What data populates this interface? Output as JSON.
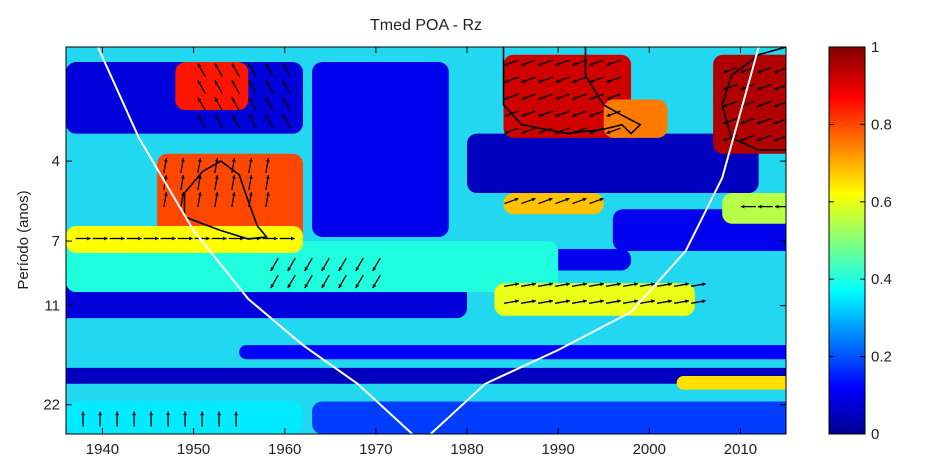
{
  "chart_data": {
    "type": "heatmap",
    "title": "Tmed POA - Rz",
    "xlabel": "",
    "ylabel": "Período (anos)",
    "x_ticks": [
      1940,
      1950,
      1960,
      1970,
      1980,
      1990,
      2000,
      2010
    ],
    "xlim": [
      1936,
      2015
    ],
    "y_ticks": [
      {
        "value": 4,
        "label": "4"
      },
      {
        "value": 7,
        "label": "7"
      },
      {
        "value": 11,
        "label": "11"
      },
      {
        "value": 22,
        "label": "22"
      }
    ],
    "ylim": [
      1.8,
      27
    ],
    "y_scale": "log",
    "colorbar": {
      "ticks": [
        0,
        0.2,
        0.4,
        0.6,
        0.8,
        1
      ],
      "tick_labels": [
        "0",
        "0.2",
        "0.4",
        "0.6",
        "0.8",
        "1"
      ],
      "range": [
        0,
        1
      ],
      "colormap": [
        "#00008f",
        "#0000ff",
        "#00ffff",
        "#ffff00",
        "#ff0000",
        "#800000"
      ]
    },
    "coherence_regions": [
      {
        "x": [
          1934,
          1980
        ],
        "y": [
          9,
          12
        ],
        "value": 0.08
      },
      {
        "x": [
          1934,
          2016
        ],
        "y": [
          17,
          19
        ],
        "value": 0.05
      },
      {
        "x": [
          1955,
          2016
        ],
        "y": [
          14.5,
          16
        ],
        "value": 0.12
      },
      {
        "x": [
          1936,
          1962
        ],
        "y": [
          2.0,
          3.3
        ],
        "value": 0.08
      },
      {
        "x": [
          1963,
          1978
        ],
        "y": [
          2.0,
          6.8
        ],
        "value": 0.1
      },
      {
        "x": [
          1980,
          2012
        ],
        "y": [
          3.3,
          5.0
        ],
        "value": 0.05
      },
      {
        "x": [
          1996,
          2016
        ],
        "y": [
          5.6,
          7.5
        ],
        "value": 0.1
      },
      {
        "x": [
          1985,
          1998
        ],
        "y": [
          7.4,
          8.6
        ],
        "value": 0.1
      },
      {
        "x": [
          1936,
          1990
        ],
        "y": [
          7.0,
          10.0
        ],
        "value": 0.4
      },
      {
        "x": [
          1946,
          1962
        ],
        "y": [
          3.8,
          7.2
        ],
        "value": 0.8
      },
      {
        "x": [
          1948,
          1956
        ],
        "y": [
          2.0,
          2.8
        ],
        "value": 0.85
      },
      {
        "x": [
          1936,
          1962
        ],
        "y": [
          6.3,
          7.6
        ],
        "value": 0.62
      },
      {
        "x": [
          1984,
          1998
        ],
        "y": [
          1.9,
          3.4
        ],
        "value": 0.92
      },
      {
        "x": [
          1995,
          2002
        ],
        "y": [
          2.6,
          3.4
        ],
        "value": 0.75
      },
      {
        "x": [
          1983,
          2005
        ],
        "y": [
          9.4,
          11.8
        ],
        "value": 0.6
      },
      {
        "x": [
          1984,
          1995
        ],
        "y": [
          5.0,
          5.8
        ],
        "value": 0.68
      },
      {
        "x": [
          2007,
          2016
        ],
        "y": [
          1.9,
          3.8
        ],
        "value": 0.95
      },
      {
        "x": [
          2003,
          2016
        ],
        "y": [
          18.0,
          19.8
        ],
        "value": 0.65
      },
      {
        "x": [
          2008,
          2016
        ],
        "y": [
          5.0,
          6.2
        ],
        "value": 0.55
      },
      {
        "x": [
          1936,
          1962
        ],
        "y": [
          21.5,
          27
        ],
        "value": 0.35
      },
      {
        "x": [
          1963,
          2016
        ],
        "y": [
          21.5,
          27
        ],
        "value": 0.18
      }
    ],
    "significance_contours": [
      {
        "points": [
          [
            1949,
            5.9
          ],
          [
            1949,
            5.0
          ],
          [
            1951,
            4.3
          ],
          [
            1953,
            4.0
          ],
          [
            1955,
            4.4
          ],
          [
            1956,
            5.3
          ],
          [
            1957,
            6.3
          ],
          [
            1958,
            6.8
          ],
          [
            1956,
            6.9
          ],
          [
            1953,
            6.5
          ],
          [
            1951,
            6.2
          ],
          [
            1949,
            5.9
          ]
        ]
      },
      {
        "points": [
          [
            1984,
            1.8
          ],
          [
            1984,
            2.7
          ],
          [
            1986,
            3.1
          ],
          [
            1991,
            3.3
          ],
          [
            1995,
            3.2
          ],
          [
            1997,
            3.1
          ],
          [
            1998,
            3.3
          ],
          [
            1999,
            3.1
          ],
          [
            1997,
            2.9
          ],
          [
            1995,
            2.7
          ],
          [
            1993,
            2.2
          ],
          [
            1993,
            1.8
          ]
        ]
      },
      {
        "points": [
          [
            2015,
            1.8
          ],
          [
            2012,
            1.9
          ],
          [
            2009,
            2.2
          ],
          [
            2008,
            2.7
          ],
          [
            2009,
            3.4
          ],
          [
            2012,
            3.7
          ],
          [
            2015,
            3.7
          ]
        ]
      }
    ],
    "cone_of_influence": {
      "left": [
        [
          1939.5,
          1.8
        ],
        [
          1944,
          3.4
        ],
        [
          1950,
          6.5
        ],
        [
          1956,
          10.5
        ],
        [
          1962,
          14.5
        ],
        [
          1968,
          19
        ],
        [
          1974,
          27
        ]
      ],
      "right": [
        [
          1976,
          27
        ],
        [
          1982,
          19
        ],
        [
          1990,
          15
        ],
        [
          1998,
          11.5
        ],
        [
          2004,
          7.5
        ],
        [
          2008,
          4.5
        ],
        [
          2012,
          1.8
        ]
      ]
    },
    "phase_arrow_regions": [
      {
        "x": [
          1937,
          1961
        ],
        "y": [
          6.5,
          7.6
        ],
        "angle_deg": 0
      },
      {
        "x": [
          1946,
          1960
        ],
        "y": [
          3.9,
          5.6
        ],
        "angle_deg": 80
      },
      {
        "x": [
          1950,
          1962
        ],
        "y": [
          2.0,
          3.4
        ],
        "angle_deg": 120
      },
      {
        "x": [
          1958,
          1972
        ],
        "y": [
          7.8,
          10.6
        ],
        "angle_deg": 240
      },
      {
        "x": [
          1984,
          2006
        ],
        "y": [
          9.0,
          11.8
        ],
        "angle_deg": 10
      },
      {
        "x": [
          1984,
          1998
        ],
        "y": [
          1.9,
          3.3
        ],
        "angle_deg": 200
      },
      {
        "x": [
          1984,
          1995
        ],
        "y": [
          5.0,
          5.8
        ],
        "angle_deg": 20
      },
      {
        "x": [
          2008,
          2016
        ],
        "y": [
          2.0,
          3.6
        ],
        "angle_deg": 200
      },
      {
        "x": [
          2003,
          2014
        ],
        "y": [
          18.5,
          19.5
        ],
        "angle_deg": 0
      },
      {
        "x": [
          1937,
          1956
        ],
        "y": [
          23,
          26
        ],
        "angle_deg": 90
      },
      {
        "x": [
          2010,
          2016
        ],
        "y": [
          5.2,
          6.2
        ],
        "angle_deg": 180
      }
    ]
  }
}
